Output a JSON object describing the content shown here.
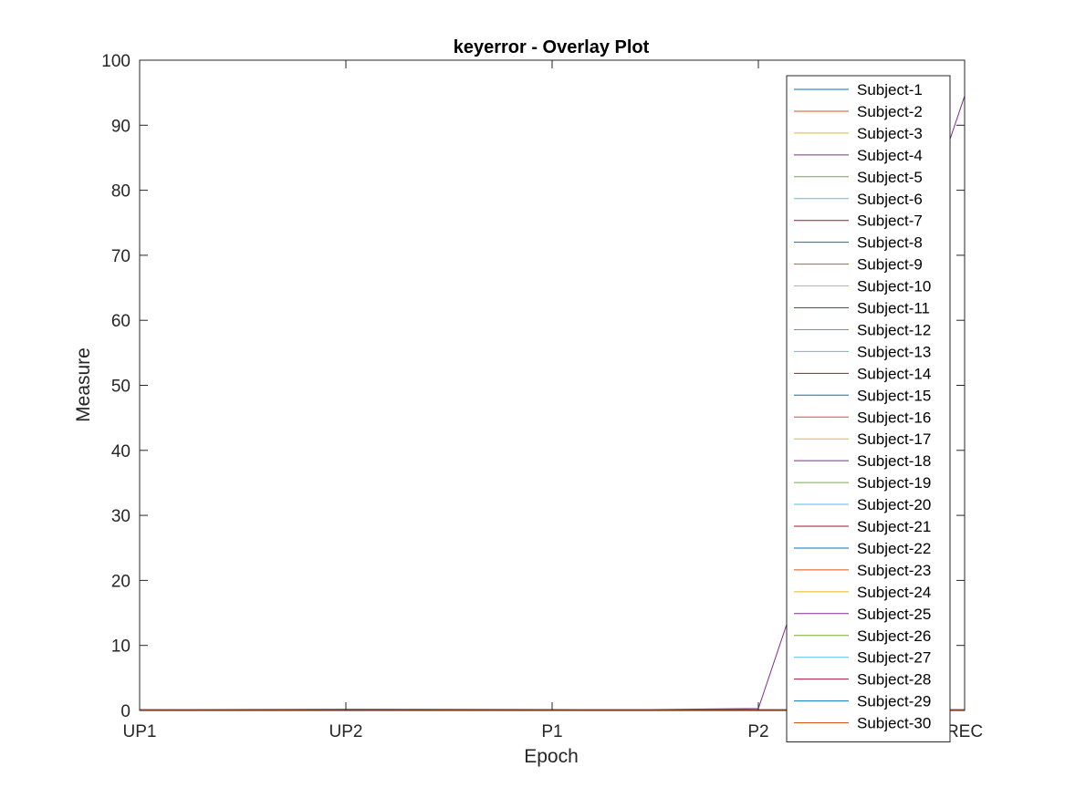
{
  "chart_data": {
    "type": "line",
    "title": "keyerror - Overlay Plot",
    "xlabel": "Epoch",
    "ylabel": "Measure",
    "categories": [
      "UP1",
      "UP2",
      "P1",
      "P2",
      "REC"
    ],
    "ylim": [
      0,
      100
    ],
    "yticks": [
      0,
      10,
      20,
      30,
      40,
      50,
      60,
      70,
      80,
      90,
      100
    ],
    "grid": false,
    "legend_position": "top-right",
    "colors": [
      "#0072BD",
      "#D95319",
      "#EDB120",
      "#7E2F8E",
      "#77AC30",
      "#4DBEEE",
      "#A2142F"
    ],
    "series": [
      {
        "name": "Subject-1",
        "values": [
          0.05,
          0.1,
          0.08,
          0.06,
          0.05
        ]
      },
      {
        "name": "Subject-2",
        "values": [
          0.1,
          0.15,
          0.12,
          0.1,
          0.1
        ]
      },
      {
        "name": "Subject-3",
        "values": [
          0.08,
          0.12,
          0.1,
          0.08,
          0.07
        ]
      },
      {
        "name": "Subject-4",
        "values": [
          0.0,
          0.0,
          0.0,
          0.3,
          94.5
        ]
      },
      {
        "name": "Subject-5",
        "values": [
          0.06,
          0.09,
          0.07,
          0.05,
          0.06
        ]
      },
      {
        "name": "Subject-6",
        "values": [
          0.04,
          0.07,
          0.05,
          0.04,
          0.04
        ]
      },
      {
        "name": "Subject-7",
        "values": [
          0.09,
          0.14,
          0.11,
          0.09,
          0.08
        ]
      },
      {
        "name": "Subject-8",
        "values": [
          0.05,
          0.08,
          0.06,
          0.05,
          0.05
        ]
      },
      {
        "name": "Subject-9",
        "values": [
          0.12,
          0.2,
          0.15,
          0.12,
          0.11
        ]
      },
      {
        "name": "Subject-10",
        "values": [
          0.07,
          0.1,
          0.08,
          0.07,
          0.06
        ]
      },
      {
        "name": "Subject-11",
        "values": [
          0.03,
          0.05,
          0.04,
          0.03,
          0.03
        ]
      },
      {
        "name": "Subject-12",
        "values": [
          0.06,
          0.08,
          0.07,
          0.06,
          0.05
        ]
      },
      {
        "name": "Subject-13",
        "values": [
          0.05,
          0.07,
          0.06,
          0.05,
          0.05
        ]
      },
      {
        "name": "Subject-14",
        "values": [
          0.08,
          0.11,
          0.09,
          0.07,
          0.07
        ]
      },
      {
        "name": "Subject-15",
        "values": [
          0.06,
          0.09,
          0.07,
          0.06,
          0.06
        ]
      },
      {
        "name": "Subject-16",
        "values": [
          0.1,
          0.16,
          0.13,
          0.1,
          0.09
        ]
      },
      {
        "name": "Subject-17",
        "values": [
          0.07,
          0.1,
          0.08,
          0.07,
          0.06
        ]
      },
      {
        "name": "Subject-18",
        "values": [
          0.04,
          0.06,
          0.05,
          0.04,
          0.04
        ]
      },
      {
        "name": "Subject-19",
        "values": [
          0.05,
          0.08,
          0.06,
          0.05,
          0.05
        ]
      },
      {
        "name": "Subject-20",
        "values": [
          0.06,
          0.08,
          0.07,
          0.06,
          0.05
        ]
      },
      {
        "name": "Subject-21",
        "values": [
          0.09,
          0.13,
          0.1,
          0.08,
          0.08
        ]
      },
      {
        "name": "Subject-22",
        "values": [
          0.05,
          0.07,
          0.06,
          0.05,
          0.05
        ]
      },
      {
        "name": "Subject-23",
        "values": [
          0.11,
          0.18,
          0.14,
          0.11,
          0.1
        ]
      },
      {
        "name": "Subject-24",
        "values": [
          0.07,
          0.1,
          0.08,
          0.07,
          0.06
        ]
      },
      {
        "name": "Subject-25",
        "values": [
          0.04,
          0.06,
          0.05,
          0.04,
          0.04
        ]
      },
      {
        "name": "Subject-26",
        "values": [
          0.05,
          0.08,
          0.06,
          0.05,
          0.05
        ]
      },
      {
        "name": "Subject-27",
        "values": [
          0.06,
          0.08,
          0.07,
          0.06,
          0.05
        ]
      },
      {
        "name": "Subject-28",
        "values": [
          0.08,
          0.12,
          0.09,
          0.07,
          0.07
        ]
      },
      {
        "name": "Subject-29",
        "values": [
          0.05,
          0.07,
          0.06,
          0.05,
          0.05
        ]
      },
      {
        "name": "Subject-30",
        "values": [
          0.1,
          0.15,
          0.12,
          0.1,
          0.09
        ]
      }
    ]
  }
}
